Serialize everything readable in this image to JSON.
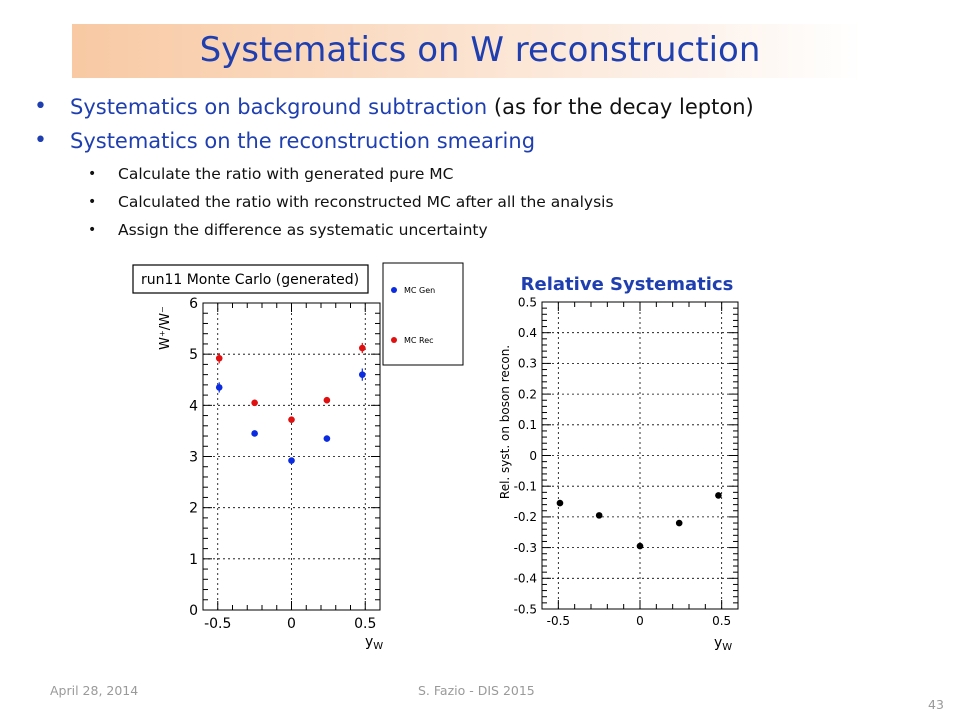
{
  "slide": {
    "title": "Systematics on W reconstruction",
    "bullets": [
      {
        "text_blue": "Systematics on background subtraction",
        "text_rest": " (as for the decay lepton)"
      },
      {
        "text_blue": "Systematics on the reconstruction smearing",
        "text_rest": ""
      }
    ],
    "sub_bullets": [
      "Calculate the ratio with generated pure MC",
      "Calculated the ratio with reconstructed MC after all the analysis",
      "Assign the difference as systematic uncertainty"
    ],
    "footer": {
      "date": "April 28, 2014",
      "author": "S. Fazio - DIS 2015",
      "page": "43"
    }
  },
  "colors": {
    "title": "#1f3fb0",
    "gen": "#0a2be0",
    "rec": "#e01010",
    "syst": "#000000"
  },
  "chart_data": [
    {
      "type": "scatter",
      "title": "run11 Monte Carlo (generated)",
      "ylabel": "W⁺/W⁻",
      "xlabel": "y_W",
      "xlim": [
        -0.6,
        0.6
      ],
      "ylim": [
        0,
        6
      ],
      "xticks": [
        -0.5,
        0,
        0.5
      ],
      "xtick_labels": [
        "-0.5",
        "0",
        "0.5"
      ],
      "yticks": [
        0,
        1,
        2,
        3,
        4,
        5,
        6
      ],
      "ytick_labels": [
        "0",
        "1",
        "2",
        "3",
        "4",
        "5",
        "6"
      ],
      "grid": true,
      "legend_position": "right-outside",
      "series": [
        {
          "name": "MC Gen",
          "color": "#0a2be0",
          "x": [
            -0.49,
            -0.25,
            0.0,
            0.24,
            0.48
          ],
          "y": [
            4.35,
            3.45,
            2.92,
            3.35,
            4.6
          ],
          "err": [
            0.1,
            0.05,
            0.04,
            0.06,
            0.12
          ]
        },
        {
          "name": "MC Rec",
          "color": "#e01010",
          "x": [
            -0.49,
            -0.25,
            0.0,
            0.24,
            0.48
          ],
          "y": [
            4.92,
            4.05,
            3.72,
            4.1,
            5.12
          ],
          "err": [
            0.1,
            0.06,
            0.04,
            0.06,
            0.1
          ]
        }
      ]
    },
    {
      "type": "scatter",
      "title": "Relative Systematics",
      "ylabel": "Rel. syst. on boson recon.",
      "xlabel": "y_W",
      "xlim": [
        -0.6,
        0.6
      ],
      "ylim": [
        -0.5,
        0.5
      ],
      "xticks": [
        -0.5,
        0,
        0.5
      ],
      "xtick_labels": [
        "-0.5",
        "0",
        "0.5"
      ],
      "yticks": [
        0.5,
        0.4,
        0.3,
        0.2,
        0.1,
        0,
        -0.1,
        -0.2,
        -0.3,
        -0.4,
        -0.5
      ],
      "ytick_labels": [
        "0.5",
        "0.4",
        "0.3",
        "0.2",
        "0.1",
        "0",
        "-0.1",
        "-0.2",
        "-0.3",
        "-0.4",
        "-0.5"
      ],
      "grid": true,
      "series": [
        {
          "color": "#000000",
          "x": [
            -0.49,
            -0.25,
            0.0,
            0.24,
            0.48
          ],
          "y": [
            -0.155,
            -0.195,
            -0.295,
            -0.22,
            -0.13
          ]
        }
      ]
    }
  ]
}
